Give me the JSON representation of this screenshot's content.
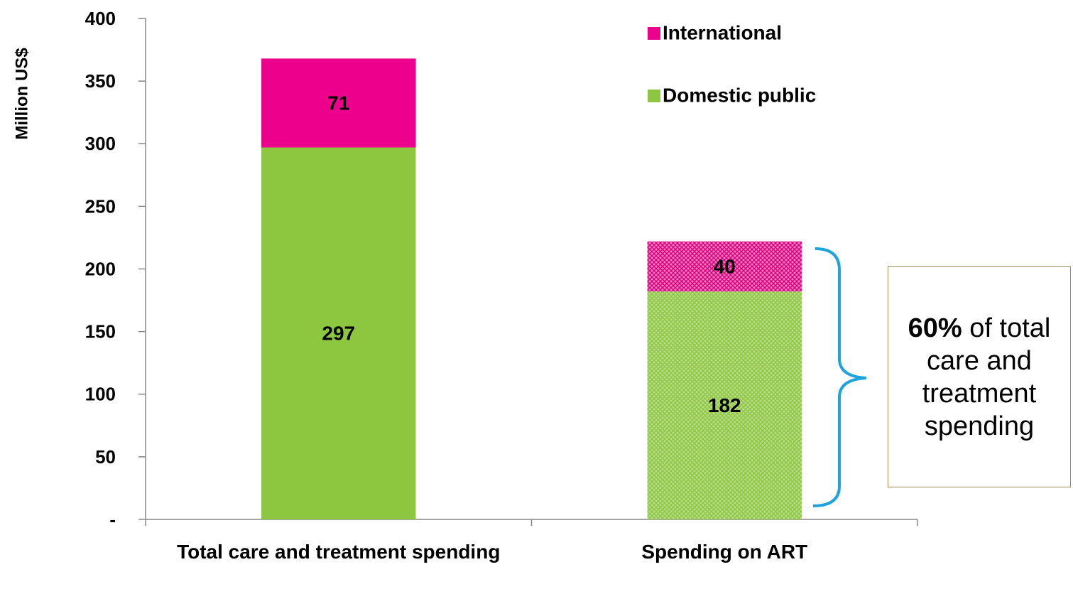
{
  "chart_data": {
    "type": "stacked_bar",
    "y_label": "Million US$",
    "categories": [
      "Total care and treatment spending",
      "Spending on ART"
    ],
    "series": [
      {
        "name": "Domestic public",
        "color": "#8dc63f",
        "values": [
          297,
          182
        ]
      },
      {
        "name": "International",
        "color": "#ec008c",
        "values": [
          71,
          40
        ]
      }
    ],
    "hatched": [
      false,
      true
    ],
    "ylim": [
      0,
      400
    ],
    "yticks": [
      {
        "value": 0,
        "label": "-"
      },
      50,
      100,
      150,
      200,
      250,
      300,
      350,
      400
    ],
    "annotation": {
      "bold": "60%",
      "text": "of total care and treatment spending"
    }
  }
}
